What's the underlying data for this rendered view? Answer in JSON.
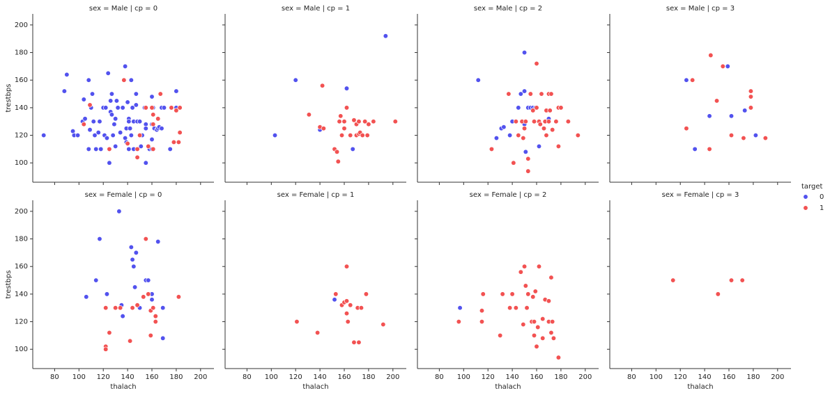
{
  "legend": {
    "title": "target"
  },
  "chart_data": [
    {
      "type": "scatter",
      "title": "sex = Male | cp = 0",
      "ylabel": "trestbps",
      "xlim": [
        62,
        211
      ],
      "ylim": [
        86,
        208
      ],
      "xticks": [
        80,
        100,
        120,
        140,
        160,
        180,
        200
      ],
      "yticks": [
        100,
        120,
        140,
        160,
        180,
        200
      ],
      "series": [
        {
          "name": "0",
          "color": "#5252ee",
          "x": [
            71,
            88,
            90,
            95,
            96,
            99,
            103,
            104,
            105,
            108,
            108,
            109,
            110,
            111,
            112,
            113,
            114,
            116,
            117,
            118,
            120,
            121,
            122,
            123,
            124,
            125,
            126,
            126,
            127,
            127,
            128,
            129,
            130,
            130,
            131,
            132,
            134,
            136,
            138,
            138,
            139,
            139,
            140,
            141,
            141,
            141,
            142,
            143,
            143,
            144,
            145,
            145,
            147,
            147,
            148,
            150,
            151,
            152,
            154,
            155,
            155,
            155,
            158,
            160,
            160,
            160,
            160,
            161,
            162,
            164,
            165,
            166,
            168,
            168,
            170,
            175,
            180,
            180
          ],
          "values": [
            120,
            152,
            164,
            123,
            120,
            120,
            130,
            146,
            132,
            110,
            160,
            124,
            140,
            150,
            130,
            120,
            110,
            122,
            130,
            110,
            140,
            120,
            140,
            118,
            165,
            100,
            145,
            137,
            135,
            150,
            120,
            128,
            132,
            112,
            145,
            140,
            122,
            140,
            170,
            118,
            115,
            125,
            144,
            132,
            130,
            110,
            125,
            160,
            120,
            140,
            130,
            110,
            150,
            142,
            130,
            130,
            112,
            120,
            140,
            100,
            128,
            125,
            110,
            110,
            148,
            128,
            117,
            140,
            125,
            124,
            125,
            126,
            140,
            125,
            140,
            110,
            152,
            140
          ]
        },
        {
          "name": "1",
          "color": "#f25252",
          "x": [
            104,
            109,
            125,
            137,
            140,
            148,
            148,
            150,
            155,
            157,
            160,
            161,
            161,
            161,
            165,
            167,
            176,
            178,
            180,
            182,
            183,
            183
          ],
          "values": [
            128,
            142,
            110,
            160,
            114,
            110,
            104,
            120,
            140,
            112,
            140,
            135,
            128,
            110,
            132,
            150,
            140,
            115,
            138,
            115,
            140,
            122
          ]
        }
      ]
    },
    {
      "type": "scatter",
      "title": "sex = Male | cp = 1",
      "xlim": [
        62,
        211
      ],
      "ylim": [
        86,
        208
      ],
      "xticks": [
        80,
        100,
        120,
        140,
        160,
        180,
        200
      ],
      "yticks": [
        100,
        120,
        140,
        160,
        180,
        200
      ],
      "series": [
        {
          "name": "0",
          "color": "#5252ee",
          "x": [
            103,
            120,
            140,
            162,
            167,
            194
          ],
          "values": [
            120,
            160,
            124,
            154,
            110,
            192
          ]
        },
        {
          "name": "1",
          "color": "#f25252",
          "x": [
            131,
            140,
            142,
            143,
            152,
            154,
            155,
            156,
            157,
            158,
            160,
            160,
            162,
            165,
            168,
            170,
            170,
            172,
            172,
            173,
            175,
            177,
            179,
            180,
            184,
            202
          ],
          "values": [
            135,
            126,
            156,
            125,
            110,
            108,
            101,
            130,
            134,
            120,
            125,
            130,
            140,
            120,
            131,
            120,
            128,
            121,
            130,
            122,
            120,
            130,
            120,
            128,
            130,
            130
          ]
        }
      ]
    },
    {
      "type": "scatter",
      "title": "sex = Male | cp = 2",
      "xlim": [
        62,
        211
      ],
      "ylim": [
        86,
        208
      ],
      "xticks": [
        80,
        100,
        120,
        140,
        160,
        180,
        200
      ],
      "yticks": [
        100,
        120,
        140,
        160,
        180,
        200
      ],
      "series": [
        {
          "name": "0",
          "color": "#5252ee",
          "x": [
            112,
            127,
            131,
            133,
            138,
            140,
            145,
            147,
            148,
            150,
            150,
            150,
            151,
            153,
            155,
            157,
            159,
            162,
            170,
            178
          ],
          "values": [
            160,
            118,
            125,
            126,
            120,
            130,
            140,
            150,
            130,
            180,
            152,
            128,
            108,
            140,
            140,
            140,
            140,
            112,
            132,
            140
          ]
        },
        {
          "name": "1",
          "color": "#f25252",
          "x": [
            123,
            137,
            141,
            143,
            145,
            148,
            149,
            150,
            151,
            153,
            153,
            155,
            157,
            158,
            160,
            160,
            162,
            163,
            164,
            166,
            167,
            168,
            168,
            170,
            170,
            171,
            172,
            173,
            176,
            178,
            178,
            180,
            186,
            194
          ],
          "values": [
            110,
            150,
            100,
            130,
            120,
            130,
            118,
            125,
            130,
            103,
            94,
            150,
            138,
            130,
            140,
            172,
            130,
            128,
            150,
            125,
            130,
            138,
            120,
            130,
            150,
            138,
            150,
            124,
            130,
            112,
            140,
            140,
            130,
            120
          ]
        }
      ]
    },
    {
      "type": "scatter",
      "title": "sex = Male | cp = 3",
      "xlim": [
        62,
        211
      ],
      "ylim": [
        86,
        208
      ],
      "xticks": [
        80,
        100,
        120,
        140,
        160,
        180,
        200
      ],
      "yticks": [
        100,
        120,
        140,
        160,
        180,
        200
      ],
      "series": [
        {
          "name": "0",
          "color": "#5252ee",
          "x": [
            125,
            132,
            144,
            159,
            162,
            173,
            182
          ],
          "values": [
            160,
            110,
            134,
            170,
            134,
            138,
            120
          ]
        },
        {
          "name": "1",
          "color": "#f25252",
          "x": [
            125,
            130,
            144,
            145,
            150,
            155,
            162,
            172,
            178,
            178,
            178,
            190
          ],
          "values": [
            125,
            160,
            110,
            178,
            145,
            170,
            120,
            118,
            140,
            148,
            152,
            118
          ]
        }
      ]
    },
    {
      "type": "scatter",
      "title": "sex = Female | cp = 0",
      "xlabel": "thalach",
      "ylabel": "trestbps",
      "xlim": [
        62,
        211
      ],
      "ylim": [
        86,
        208
      ],
      "xticks": [
        80,
        100,
        120,
        140,
        160,
        180,
        200
      ],
      "yticks": [
        100,
        120,
        140,
        160,
        180,
        200
      ],
      "series": [
        {
          "name": "0",
          "color": "#5252ee",
          "x": [
            106,
            114,
            117,
            123,
            133,
            135,
            136,
            143,
            144,
            145,
            146,
            147,
            150,
            155,
            157,
            160,
            160,
            165,
            169,
            169
          ],
          "values": [
            138,
            150,
            180,
            140,
            200,
            132,
            124,
            174,
            165,
            160,
            145,
            170,
            130,
            150,
            150,
            136,
            140,
            178,
            130,
            108
          ]
        },
        {
          "name": "1",
          "color": "#f25252",
          "x": [
            122,
            122,
            122,
            125,
            130,
            134,
            142,
            144,
            148,
            153,
            155,
            157,
            159,
            159,
            161,
            163,
            163,
            182
          ],
          "values": [
            130,
            102,
            100,
            112,
            130,
            130,
            106,
            130,
            132,
            138,
            180,
            140,
            128,
            110,
            130,
            124,
            120,
            138
          ]
        }
      ]
    },
    {
      "type": "scatter",
      "title": "sex = Female | cp = 1",
      "xlabel": "thalach",
      "xlim": [
        62,
        211
      ],
      "ylim": [
        86,
        208
      ],
      "xticks": [
        80,
        100,
        120,
        140,
        160,
        180,
        200
      ],
      "yticks": [
        100,
        120,
        140,
        160,
        180,
        200
      ],
      "series": [
        {
          "name": "0",
          "color": "#5252ee",
          "x": [
            152
          ],
          "values": [
            136
          ]
        },
        {
          "name": "1",
          "color": "#f25252",
          "x": [
            121,
            138,
            153,
            158,
            160,
            162,
            162,
            162,
            163,
            165,
            168,
            171,
            172,
            174,
            178,
            192
          ],
          "values": [
            120,
            112,
            140,
            132,
            134,
            160,
            135,
            126,
            120,
            132,
            105,
            130,
            105,
            130,
            140,
            118
          ]
        }
      ]
    },
    {
      "type": "scatter",
      "title": "sex = Female | cp = 2",
      "xlabel": "thalach",
      "xlim": [
        62,
        211
      ],
      "ylim": [
        86,
        208
      ],
      "xticks": [
        80,
        100,
        120,
        140,
        160,
        180,
        200
      ],
      "yticks": [
        100,
        120,
        140,
        160,
        180,
        200
      ],
      "series": [
        {
          "name": "0",
          "color": "#5252ee",
          "x": [
            97
          ],
          "values": [
            130
          ]
        },
        {
          "name": "1",
          "color": "#f25252",
          "x": [
            96,
            115,
            115,
            116,
            130,
            132,
            138,
            140,
            143,
            147,
            149,
            150,
            151,
            152,
            153,
            156,
            157,
            158,
            158,
            159,
            160,
            161,
            162,
            165,
            165,
            167,
            170,
            170,
            172,
            172,
            173,
            174,
            178
          ],
          "values": [
            120,
            128,
            120,
            140,
            110,
            140,
            130,
            140,
            130,
            156,
            118,
            160,
            146,
            130,
            140,
            120,
            138,
            110,
            120,
            142,
            102,
            116,
            160,
            108,
            122,
            136,
            120,
            135,
            152,
            112,
            120,
            108,
            94
          ]
        }
      ]
    },
    {
      "type": "scatter",
      "title": "sex = Female | cp = 3",
      "xlabel": "thalach",
      "xlim": [
        62,
        211
      ],
      "ylim": [
        86,
        208
      ],
      "xticks": [
        80,
        100,
        120,
        140,
        160,
        180,
        200
      ],
      "yticks": [
        100,
        120,
        140,
        160,
        180,
        200
      ],
      "series": [
        {
          "name": "0",
          "color": "#5252ee",
          "x": [],
          "values": []
        },
        {
          "name": "1",
          "color": "#f25252",
          "x": [
            114,
            151,
            162,
            171
          ],
          "values": [
            150,
            140,
            150,
            150
          ]
        }
      ]
    }
  ]
}
